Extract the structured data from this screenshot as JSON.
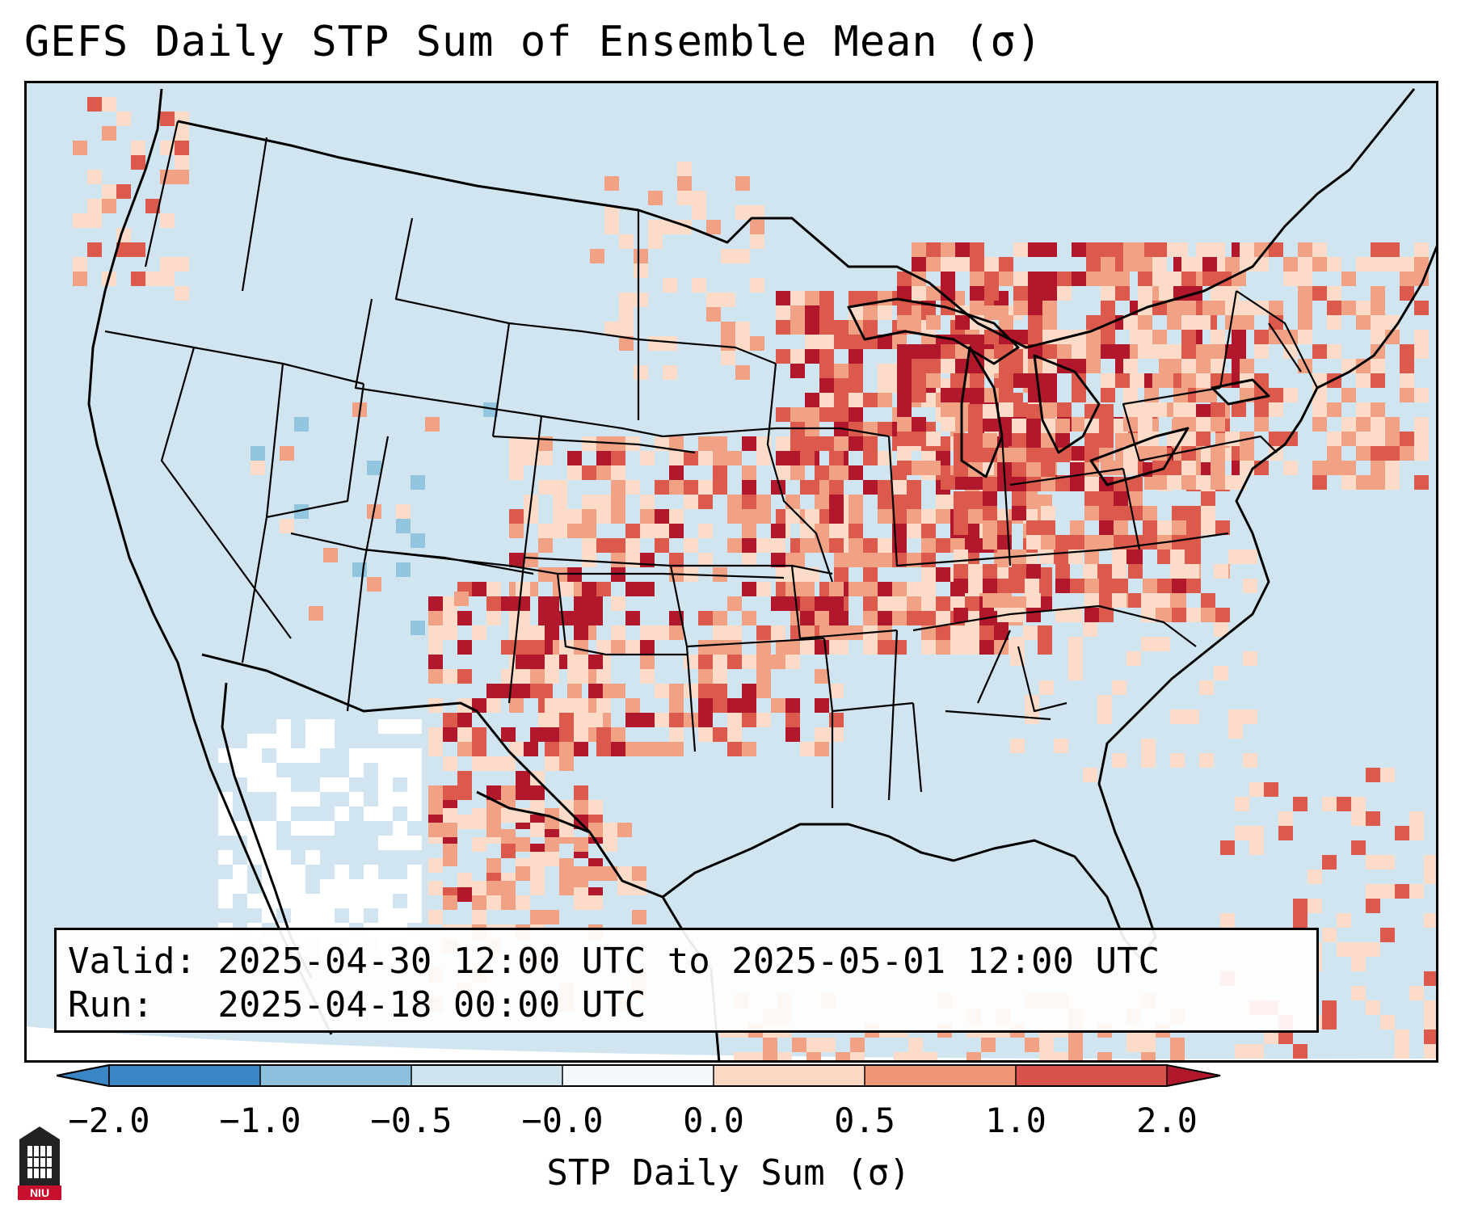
{
  "title": "GEFS Daily STP Sum of Ensemble Mean (σ)",
  "info": {
    "valid_line": "Valid: 2025-04-30 12:00 UTC to 2025-05-01 12:00 UTC",
    "run_line": "Run:   2025-04-18 00:00 UTC"
  },
  "colorbar": {
    "label": "STP Daily Sum (σ)",
    "ticks": [
      "−2.0",
      "−1.0",
      "−0.5",
      "−0.0",
      "0.0",
      "0.5",
      "1.0",
      "2.0"
    ],
    "colors": [
      "#3a86c4",
      "#8cc0dd",
      "#cfe3ef",
      "#f5f8fa",
      "#fbd7c4",
      "#ef9676",
      "#d6524a",
      "#b2182b"
    ]
  },
  "legend_text": {
    "logo": "NIU"
  },
  "colors": {
    "background": "#d1e5f0",
    "land_white": "#ffffff",
    "light_red": "#fcdcc9",
    "mid_red": "#f2a284",
    "strong_red": "#dc5a4c",
    "dark_red": "#b2182b",
    "blue": "#92c5de"
  }
}
